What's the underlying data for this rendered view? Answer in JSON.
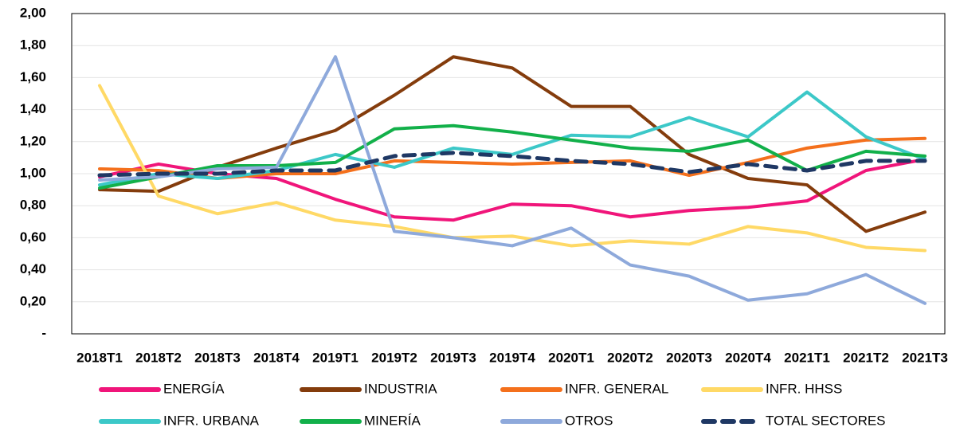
{
  "chart_data": {
    "type": "line",
    "categories": [
      "2018T1",
      "2018T2",
      "2018T3",
      "2018T4",
      "2019T1",
      "2019T2",
      "2019T3",
      "2019T4",
      "2020T1",
      "2020T2",
      "2020T3",
      "2020T4",
      "2021T1",
      "2021T2",
      "2021T3"
    ],
    "ylim": [
      0,
      2
    ],
    "yticks": [
      {
        "value": 0,
        "label": "-"
      },
      {
        "value": 0.2,
        "label": "0,20"
      },
      {
        "value": 0.4,
        "label": "0,40"
      },
      {
        "value": 0.6,
        "label": "0,60"
      },
      {
        "value": 0.8,
        "label": "0,80"
      },
      {
        "value": 1,
        "label": "1,00"
      },
      {
        "value": 1.2,
        "label": "1,20"
      },
      {
        "value": 1.4,
        "label": "1,40"
      },
      {
        "value": 1.6,
        "label": "1,60"
      },
      {
        "value": 1.8,
        "label": "1,80"
      },
      {
        "value": 2,
        "label": "2,00"
      }
    ],
    "grid": true,
    "series": [
      {
        "name": "ENERGÍA",
        "color": "#f0157a",
        "values": [
          0.98,
          1.06,
          1.0,
          0.97,
          0.84,
          0.73,
          0.71,
          0.81,
          0.8,
          0.73,
          0.77,
          0.79,
          0.83,
          1.02,
          1.09
        ]
      },
      {
        "name": "INDUSTRIA",
        "color": "#843c0c",
        "values": [
          0.9,
          0.89,
          1.04,
          1.16,
          1.27,
          1.49,
          1.73,
          1.66,
          1.42,
          1.42,
          1.12,
          0.97,
          0.93,
          0.64,
          0.76
        ]
      },
      {
        "name": "INFR. GENERAL",
        "color": "#f4701c",
        "values": [
          1.03,
          1.02,
          0.97,
          1.0,
          1.0,
          1.08,
          1.07,
          1.06,
          1.07,
          1.08,
          0.99,
          1.07,
          1.16,
          1.21,
          1.22
        ]
      },
      {
        "name": "INFR. HHSS",
        "color": "#ffd966",
        "values": [
          1.55,
          0.86,
          0.75,
          0.82,
          0.71,
          0.67,
          0.6,
          0.61,
          0.55,
          0.58,
          0.56,
          0.67,
          0.63,
          0.54,
          0.52
        ]
      },
      {
        "name": "INFR. URBANA",
        "color": "#3cc8c8",
        "values": [
          0.93,
          1.0,
          0.97,
          1.02,
          1.12,
          1.04,
          1.16,
          1.12,
          1.24,
          1.23,
          1.35,
          1.23,
          1.51,
          1.23,
          1.09
        ]
      },
      {
        "name": "MINERÍA",
        "color": "#12b04a",
        "values": [
          0.91,
          0.98,
          1.05,
          1.05,
          1.07,
          1.28,
          1.3,
          1.26,
          1.21,
          1.16,
          1.14,
          1.21,
          1.02,
          1.14,
          1.11
        ]
      },
      {
        "name": "OTROS",
        "color": "#8ea9db",
        "values": [
          0.96,
          0.98,
          1.03,
          1.04,
          1.73,
          0.64,
          0.6,
          0.55,
          0.66,
          0.43,
          0.36,
          0.21,
          0.25,
          0.37,
          0.19
        ]
      },
      {
        "name": "TOTAL SECTORES",
        "color": "#1f3864",
        "style": "dashed",
        "values": [
          0.99,
          1.0,
          1.0,
          1.02,
          1.02,
          1.11,
          1.13,
          1.11,
          1.08,
          1.06,
          1.01,
          1.06,
          1.02,
          1.08,
          1.08
        ]
      }
    ]
  }
}
